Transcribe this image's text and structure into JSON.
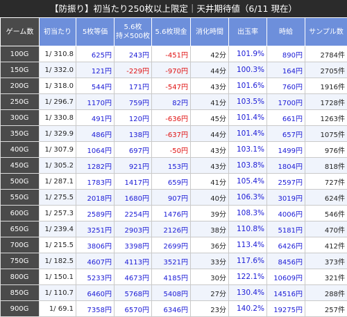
{
  "title": "【防振り】初当たり250枚以上限定｜天井期待値（6/11 現在）",
  "columns": [
    "ゲーム数",
    "初当たり",
    "5枚等価",
    "5.6枚\n持メ500枚",
    "5.6枚現金",
    "消化時間",
    "出玉率",
    "時給",
    "サンプル数"
  ],
  "colors": {
    "header_blue": "#6d8fdb",
    "header_dark": "#4a4a4a",
    "positive": "#1a1ad6",
    "negative": "#e01010",
    "title_bg": "#2b2b2b"
  },
  "rows": [
    [
      "100G",
      "1/ 310.8",
      "625円",
      "243円",
      "-451円",
      "42分",
      "101.9%",
      "890円",
      "2784件"
    ],
    [
      "150G",
      "1/ 332.0",
      "121円",
      "-229円",
      "-970円",
      "44分",
      "100.3%",
      "164円",
      "2705件"
    ],
    [
      "200G",
      "1/ 318.0",
      "544円",
      "171円",
      "-547円",
      "43分",
      "101.6%",
      "760円",
      "1916件"
    ],
    [
      "250G",
      "1/ 296.7",
      "1170円",
      "759円",
      "82円",
      "41分",
      "103.5%",
      "1700円",
      "1728件"
    ],
    [
      "300G",
      "1/ 330.8",
      "491円",
      "120円",
      "-636円",
      "45分",
      "101.4%",
      "661円",
      "1263件"
    ],
    [
      "350G",
      "1/ 329.9",
      "486円",
      "138円",
      "-637円",
      "44分",
      "101.4%",
      "657円",
      "1075件"
    ],
    [
      "400G",
      "1/ 307.9",
      "1064円",
      "697円",
      "-50円",
      "43分",
      "103.1%",
      "1499円",
      "976件"
    ],
    [
      "450G",
      "1/ 305.2",
      "1282円",
      "921円",
      "153円",
      "43分",
      "103.8%",
      "1804円",
      "818件"
    ],
    [
      "500G",
      "1/ 287.1",
      "1783円",
      "1417円",
      "659円",
      "41分",
      "105.4%",
      "2597円",
      "727件"
    ],
    [
      "550G",
      "1/ 275.5",
      "2018円",
      "1680円",
      "907円",
      "40分",
      "106.3%",
      "3019円",
      "624件"
    ],
    [
      "600G",
      "1/ 257.3",
      "2589円",
      "2254円",
      "1476円",
      "39分",
      "108.3%",
      "4006円",
      "546件"
    ],
    [
      "650G",
      "1/ 239.4",
      "3251円",
      "2903円",
      "2126円",
      "38分",
      "110.8%",
      "5181円",
      "470件"
    ],
    [
      "700G",
      "1/ 215.5",
      "3806円",
      "3398円",
      "2699円",
      "36分",
      "113.4%",
      "6426円",
      "412件"
    ],
    [
      "750G",
      "1/ 182.5",
      "4607円",
      "4113円",
      "3521円",
      "33分",
      "117.6%",
      "8456円",
      "373件"
    ],
    [
      "800G",
      "1/ 150.1",
      "5233円",
      "4673円",
      "4185円",
      "30分",
      "122.1%",
      "10609円",
      "321件"
    ],
    [
      "850G",
      "1/ 110.7",
      "6460円",
      "5768円",
      "5408円",
      "27分",
      "130.4%",
      "14516円",
      "288件"
    ],
    [
      "900G",
      "1/ 69.1",
      "7358円",
      "6570円",
      "6346円",
      "23分",
      "140.2%",
      "19275円",
      "257件"
    ]
  ]
}
